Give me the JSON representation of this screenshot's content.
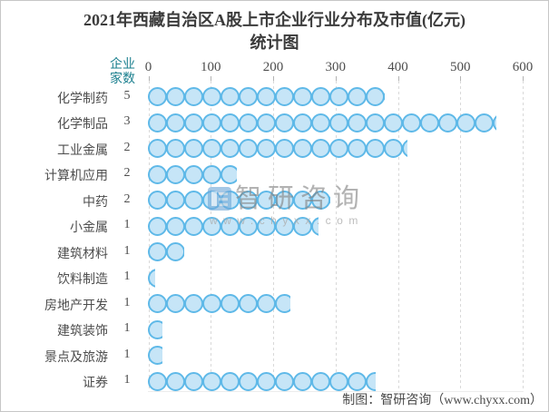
{
  "title": {
    "line1": "2021年西藏自治区A股上市企业行业分布及市值(亿元)",
    "line2": "统计图"
  },
  "chart_data": {
    "type": "bar",
    "orientation": "horizontal",
    "title": "2021年西藏自治区A股上市企业行业分布及市值(亿元)统计图",
    "count_column_header": "企业家数",
    "categories": [
      "化学制药",
      "化学制品",
      "工业金属",
      "计算机应用",
      "中药",
      "小金属",
      "建筑材料",
      "饮料制造",
      "房地产开发",
      "建筑装饰",
      "景点及旅游",
      "证券"
    ],
    "series": [
      {
        "name": "企业家数",
        "values": [
          5,
          3,
          2,
          2,
          2,
          1,
          1,
          1,
          1,
          1,
          1,
          1
        ]
      },
      {
        "name": "市值(亿元)",
        "values": [
          380,
          558,
          416,
          143,
          293,
          273,
          58,
          12,
          229,
          23,
          23,
          365
        ]
      }
    ],
    "xticks": [
      0,
      100,
      200,
      300,
      400,
      500,
      600
    ],
    "xlim": [
      0,
      600
    ],
    "legend": "none",
    "grid": "vertical-dashed",
    "bar_style": "overlapping-bubble-circles"
  },
  "watermark": {
    "brand": "智研咨询",
    "site": "www.chyxx.com"
  },
  "footer": {
    "credit": "制图：智研咨询（www.chyxx.com）"
  },
  "colors": {
    "bubble_fill": "#c6e5f7",
    "bubble_stroke": "#5fb9e8",
    "count_header_teal": "#1a7f8e",
    "text": "#4d4d4d",
    "title_text": "#3b3b3b",
    "grid": "#d9d9d9",
    "frame_border": "#c6c6c6"
  }
}
